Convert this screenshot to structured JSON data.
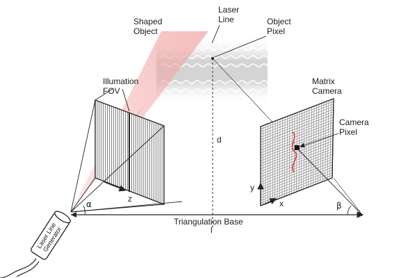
{
  "colors": {
    "background": "#ffffff",
    "line": "#222222",
    "laser_beam": "#f2a8a8",
    "laser_trace": "#e0302a",
    "object_gray": "#cfcfcf",
    "grid_fill": "#6e6e6e"
  },
  "labels": {
    "shaped_object": [
      "Shaped",
      "Object"
    ],
    "laser_line": [
      "Laser",
      "Line"
    ],
    "object_pixel": [
      "Object",
      "Pixel"
    ],
    "illumination_fov": [
      "Illumation",
      "FOV"
    ],
    "matrix_camera": [
      "Matrix",
      "Camera"
    ],
    "camera_pixel": [
      "Camera",
      "Pixel"
    ],
    "d": "d",
    "l": "l",
    "alpha": "α",
    "beta": "β",
    "z": "z",
    "x": "x",
    "y": "y",
    "triangulation_base": "Triangulation Base",
    "generator": [
      "Laser Line",
      "Generator"
    ]
  }
}
